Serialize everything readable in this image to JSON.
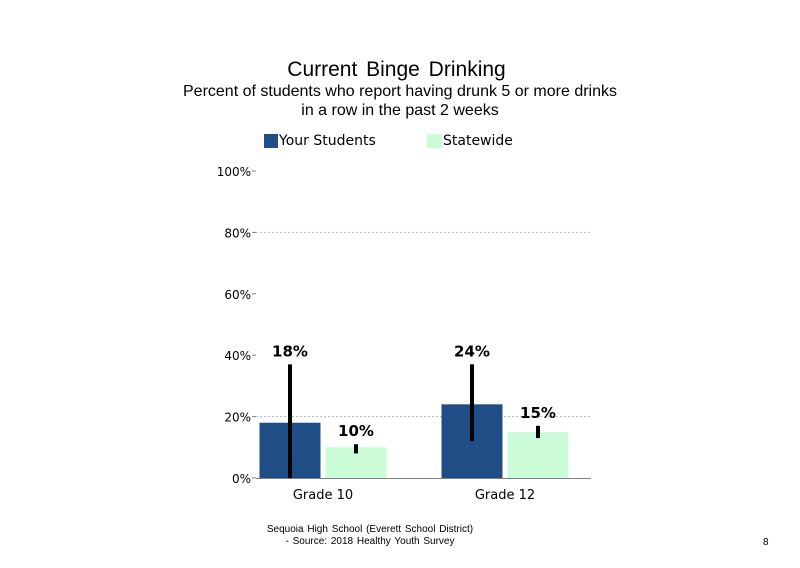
{
  "chart_data": {
    "type": "bar",
    "title": "Current Binge Drinking",
    "subtitle_lines": [
      "Percent of students who report having drunk 5 or more drinks",
      "in a row in the past 2 weeks"
    ],
    "categories": [
      "Grade 10",
      "Grade 12"
    ],
    "series": [
      {
        "name": "Your Students",
        "color": "#1f4e86",
        "values": [
          18,
          24
        ],
        "data_labels": [
          "18%",
          "24%"
        ],
        "error_bars": [
          [
            0,
            37
          ],
          [
            12,
            37
          ]
        ]
      },
      {
        "name": "Statewide",
        "color": "#ccfcd7",
        "values": [
          10,
          15
        ],
        "data_labels": [
          "10%",
          "15%"
        ],
        "error_bars": [
          [
            8,
            11
          ],
          [
            13,
            17
          ]
        ]
      }
    ],
    "y_ticks": [
      "0%",
      "20%",
      "40%",
      "60%",
      "80%",
      "100%"
    ],
    "ylim": [
      0,
      100
    ],
    "xlabel": "",
    "ylabel": "",
    "grid": "dashed horizontal at 20% and 80%",
    "legend_position": "top"
  },
  "footer": {
    "line1": "Sequoia High School (Everett School District)",
    "line2": "- Source: 2018 Healthy Youth Survey"
  },
  "page_number": "8"
}
